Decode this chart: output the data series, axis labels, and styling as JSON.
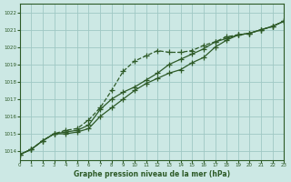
{
  "title": "Graphe pression niveau de la mer (hPa)",
  "background_color": "#cce8e4",
  "grid_color": "#9fc8c4",
  "line_color": "#2d5a27",
  "xlim": [
    0,
    23
  ],
  "ylim": [
    1013.5,
    1022.5
  ],
  "yticks": [
    1014,
    1015,
    1016,
    1017,
    1018,
    1019,
    1020,
    1021,
    1022
  ],
  "xticks": [
    0,
    1,
    2,
    3,
    4,
    5,
    6,
    7,
    8,
    9,
    10,
    11,
    12,
    13,
    14,
    15,
    16,
    17,
    18,
    19,
    20,
    21,
    22,
    23
  ],
  "series1": [
    1013.8,
    1014.1,
    1014.6,
    1015.0,
    1015.1,
    1015.2,
    1015.5,
    1016.4,
    1017.0,
    1017.4,
    1017.7,
    1018.1,
    1018.5,
    1019.0,
    1019.3,
    1019.6,
    1019.9,
    1020.3,
    1020.5,
    1020.7,
    1020.8,
    1021.0,
    1021.2,
    1021.5
  ],
  "series2": [
    1013.8,
    1014.1,
    1014.6,
    1015.0,
    1015.2,
    1015.3,
    1015.8,
    1016.5,
    1017.5,
    1018.6,
    1019.2,
    1019.5,
    1019.8,
    1019.7,
    1019.7,
    1019.8,
    1020.1,
    1020.3,
    1020.6,
    1020.7,
    1020.8,
    1021.0,
    1021.2,
    1021.5
  ],
  "series3": [
    1013.8,
    1014.1,
    1014.6,
    1015.0,
    1015.0,
    1015.1,
    1015.3,
    1016.0,
    1016.5,
    1017.0,
    1017.5,
    1017.9,
    1018.2,
    1018.5,
    1018.7,
    1019.1,
    1019.4,
    1020.0,
    1020.4,
    1020.7,
    1020.8,
    1021.0,
    1021.2,
    1021.5
  ]
}
